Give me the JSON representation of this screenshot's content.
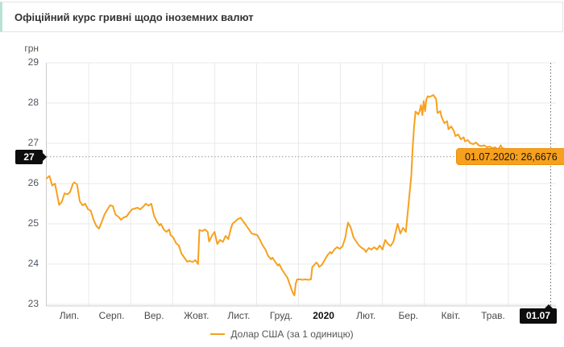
{
  "header": {
    "title": "Офіційний курс гривні щодо іноземних валют"
  },
  "colors": {
    "line": "#f7a01d",
    "tooltip_bg": "#f7a01d",
    "badge_bg": "#0d0d0d",
    "header_accent": "#b9e2d2",
    "grid": "#e9e9e9",
    "axis": "#cccccc"
  },
  "chart_data": {
    "type": "line",
    "title": "Офіційний курс гривні щодо іноземних валют",
    "ylabel": "грн",
    "unit_label": "грн",
    "ylim": [
      23,
      29
    ],
    "y_ticks": [
      29,
      28,
      27,
      26,
      25,
      24,
      23
    ],
    "x_tick_labels": [
      "Лип.",
      "Серп.",
      "Вер.",
      "Жовт.",
      "Лист.",
      "Груд.",
      "2020",
      "Лют.",
      "Бер.",
      "Квіт.",
      "Трав."
    ],
    "emphasized_tick": "2020",
    "x_end_badge": "01.07",
    "y_value_badge": "27",
    "tooltip_text": "01.07.2020: 26,6676",
    "current_value": 26.6676,
    "x_range_days": [
      0,
      366
    ],
    "grid": true,
    "legend_position": "bottom",
    "series": [
      {
        "name": "Долар США (за 1 одиницю)",
        "points": [
          [
            0,
            26.13
          ],
          [
            2,
            26.19
          ],
          [
            4,
            25.95
          ],
          [
            6,
            26.0
          ],
          [
            9,
            25.47
          ],
          [
            11,
            25.55
          ],
          [
            13,
            25.76
          ],
          [
            15,
            25.73
          ],
          [
            17,
            25.79
          ],
          [
            19,
            25.99
          ],
          [
            20,
            26.03
          ],
          [
            22,
            25.98
          ],
          [
            24,
            25.56
          ],
          [
            26,
            25.46
          ],
          [
            28,
            25.5
          ],
          [
            30,
            25.36
          ],
          [
            32,
            25.33
          ],
          [
            34,
            25.1
          ],
          [
            36,
            24.95
          ],
          [
            38,
            24.88
          ],
          [
            40,
            25.05
          ],
          [
            42,
            25.23
          ],
          [
            44,
            25.35
          ],
          [
            46,
            25.46
          ],
          [
            48,
            25.44
          ],
          [
            50,
            25.23
          ],
          [
            52,
            25.18
          ],
          [
            54,
            25.1
          ],
          [
            56,
            25.16
          ],
          [
            58,
            25.18
          ],
          [
            60,
            25.28
          ],
          [
            62,
            25.36
          ],
          [
            64,
            25.38
          ],
          [
            66,
            25.4
          ],
          [
            68,
            25.36
          ],
          [
            70,
            25.42
          ],
          [
            72,
            25.5
          ],
          [
            74,
            25.45
          ],
          [
            76,
            25.5
          ],
          [
            78,
            25.2
          ],
          [
            80,
            25.06
          ],
          [
            82,
            24.96
          ],
          [
            83,
            25.0
          ],
          [
            85,
            24.86
          ],
          [
            87,
            24.8
          ],
          [
            89,
            24.86
          ],
          [
            90,
            24.72
          ],
          [
            92,
            24.66
          ],
          [
            94,
            24.52
          ],
          [
            96,
            24.46
          ],
          [
            98,
            24.26
          ],
          [
            100,
            24.16
          ],
          [
            102,
            24.06
          ],
          [
            104,
            24.08
          ],
          [
            106,
            24.05
          ],
          [
            108,
            24.1
          ],
          [
            110,
            24.0
          ],
          [
            111,
            24.85
          ],
          [
            113,
            24.82
          ],
          [
            115,
            24.86
          ],
          [
            117,
            24.8
          ],
          [
            118,
            24.56
          ],
          [
            119,
            24.62
          ],
          [
            120,
            24.7
          ],
          [
            122,
            24.8
          ],
          [
            124,
            24.5
          ],
          [
            126,
            24.6
          ],
          [
            128,
            24.55
          ],
          [
            130,
            24.7
          ],
          [
            132,
            24.62
          ],
          [
            134,
            24.9
          ],
          [
            135,
            25.0
          ],
          [
            137,
            25.06
          ],
          [
            139,
            25.12
          ],
          [
            141,
            25.15
          ],
          [
            143,
            25.05
          ],
          [
            145,
            24.96
          ],
          [
            147,
            24.86
          ],
          [
            149,
            24.76
          ],
          [
            151,
            24.74
          ],
          [
            153,
            24.72
          ],
          [
            155,
            24.6
          ],
          [
            157,
            24.46
          ],
          [
            159,
            24.36
          ],
          [
            161,
            24.2
          ],
          [
            163,
            24.12
          ],
          [
            164,
            24.16
          ],
          [
            166,
            24.06
          ],
          [
            168,
            23.96
          ],
          [
            169,
            24.0
          ],
          [
            171,
            23.86
          ],
          [
            173,
            23.76
          ],
          [
            175,
            23.66
          ],
          [
            176,
            23.56
          ],
          [
            177,
            23.46
          ],
          [
            178,
            23.36
          ],
          [
            179,
            23.28
          ],
          [
            180,
            23.22
          ],
          [
            181,
            23.52
          ],
          [
            182,
            23.62
          ],
          [
            184,
            23.62
          ],
          [
            186,
            23.61
          ],
          [
            188,
            23.62
          ],
          [
            190,
            23.61
          ],
          [
            192,
            23.62
          ],
          [
            193,
            23.93
          ],
          [
            194,
            23.96
          ],
          [
            196,
            24.04
          ],
          [
            197,
            24.0
          ],
          [
            198,
            23.93
          ],
          [
            200,
            23.98
          ],
          [
            202,
            24.1
          ],
          [
            204,
            24.22
          ],
          [
            206,
            24.3
          ],
          [
            207,
            24.26
          ],
          [
            209,
            24.36
          ],
          [
            211,
            24.42
          ],
          [
            213,
            24.38
          ],
          [
            215,
            24.44
          ],
          [
            217,
            24.66
          ],
          [
            218,
            24.86
          ],
          [
            219,
            25.03
          ],
          [
            221,
            24.9
          ],
          [
            223,
            24.66
          ],
          [
            225,
            24.56
          ],
          [
            227,
            24.46
          ],
          [
            229,
            24.4
          ],
          [
            231,
            24.36
          ],
          [
            232,
            24.3
          ],
          [
            234,
            24.4
          ],
          [
            236,
            24.36
          ],
          [
            238,
            24.42
          ],
          [
            240,
            24.36
          ],
          [
            242,
            24.46
          ],
          [
            244,
            24.36
          ],
          [
            246,
            24.6
          ],
          [
            248,
            24.5
          ],
          [
            250,
            24.45
          ],
          [
            252,
            24.56
          ],
          [
            254,
            24.85
          ],
          [
            255,
            25.0
          ],
          [
            257,
            24.76
          ],
          [
            259,
            24.9
          ],
          [
            261,
            24.8
          ],
          [
            263,
            25.5
          ],
          [
            265,
            26.2
          ],
          [
            266,
            26.9
          ],
          [
            267,
            27.4
          ],
          [
            268,
            27.79
          ],
          [
            270,
            27.72
          ],
          [
            271,
            27.8
          ],
          [
            272,
            27.95
          ],
          [
            273,
            27.7
          ],
          [
            274,
            28.05
          ],
          [
            275,
            27.8
          ],
          [
            276,
            28.1
          ],
          [
            277,
            28.17
          ],
          [
            278,
            28.15
          ],
          [
            280,
            28.18
          ],
          [
            281,
            28.2
          ],
          [
            283,
            28.1
          ],
          [
            284,
            27.75
          ],
          [
            286,
            27.8
          ],
          [
            287,
            27.65
          ],
          [
            289,
            27.5
          ],
          [
            291,
            27.55
          ],
          [
            292,
            27.35
          ],
          [
            294,
            27.42
          ],
          [
            296,
            27.3
          ],
          [
            297,
            27.18
          ],
          [
            299,
            27.22
          ],
          [
            301,
            27.1
          ],
          [
            303,
            27.15
          ],
          [
            304,
            27.05
          ],
          [
            306,
            27.08
          ],
          [
            308,
            27.0
          ],
          [
            310,
            26.98
          ],
          [
            312,
            27.02
          ],
          [
            314,
            26.95
          ],
          [
            316,
            26.93
          ],
          [
            318,
            26.95
          ],
          [
            320,
            26.9
          ],
          [
            322,
            26.92
          ],
          [
            324,
            26.88
          ],
          [
            326,
            26.9
          ],
          [
            328,
            26.85
          ],
          [
            330,
            26.95
          ],
          [
            331,
            26.88
          ],
          [
            333,
            26.86
          ],
          [
            336,
            26.85
          ],
          [
            338,
            26.8
          ],
          [
            340,
            26.78
          ],
          [
            342,
            26.75
          ],
          [
            344,
            26.78
          ],
          [
            346,
            26.72
          ],
          [
            348,
            26.7
          ],
          [
            350,
            26.74
          ],
          [
            352,
            26.7
          ],
          [
            354,
            26.68
          ],
          [
            356,
            26.72
          ],
          [
            358,
            26.7
          ],
          [
            360,
            26.68
          ],
          [
            362,
            26.66
          ],
          [
            364,
            26.68
          ],
          [
            366,
            26.6676
          ]
        ]
      }
    ],
    "legend": [
      "Долар США (за 1 одиницю)"
    ]
  }
}
